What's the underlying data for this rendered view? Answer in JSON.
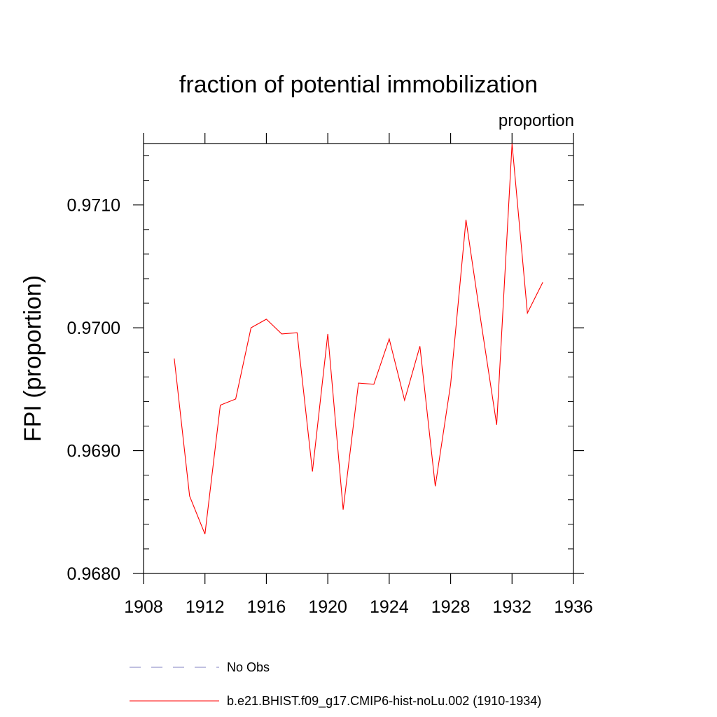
{
  "chart_data": {
    "type": "line",
    "title": "fraction of potential immobilization",
    "units_label": "proportion",
    "ylabel": "FPI  (proportion)",
    "xlabel": "",
    "xlim": [
      1908,
      1936
    ],
    "ylim": [
      0.968,
      0.9715
    ],
    "x_ticks": [
      1908,
      1912,
      1916,
      1920,
      1924,
      1928,
      1932,
      1936
    ],
    "x_tick_labels": [
      "1908",
      "1912",
      "1916",
      "1920",
      "1924",
      "1928",
      "1932",
      "1936"
    ],
    "y_ticks": [
      0.968,
      0.969,
      0.97,
      0.971
    ],
    "y_tick_labels": [
      "0.9680",
      "0.9690",
      "0.9700",
      "0.9710"
    ],
    "grid": false,
    "legend_position": "bottom",
    "series": [
      {
        "name": "No Obs",
        "color": "#8080c0",
        "style": "dashed",
        "x": [],
        "y": []
      },
      {
        "name": "b.e21.BHIST.f09_g17.CMIP6-hist-noLu.002 (1910-1934)",
        "color": "#ff0000",
        "style": "solid",
        "x": [
          1910,
          1911,
          1912,
          1913,
          1914,
          1915,
          1916,
          1917,
          1918,
          1919,
          1920,
          1921,
          1922,
          1923,
          1924,
          1925,
          1926,
          1927,
          1928,
          1929,
          1930,
          1931,
          1932,
          1933,
          1934
        ],
        "y": [
          0.96975,
          0.96863,
          0.96832,
          0.96937,
          0.96942,
          0.97,
          0.97007,
          0.96995,
          0.96996,
          0.96883,
          0.96995,
          0.96852,
          0.96955,
          0.96954,
          0.96991,
          0.96941,
          0.96985,
          0.96871,
          0.96954,
          0.97088,
          0.97003,
          0.96921,
          0.9715,
          0.97012,
          0.97037
        ]
      }
    ]
  }
}
